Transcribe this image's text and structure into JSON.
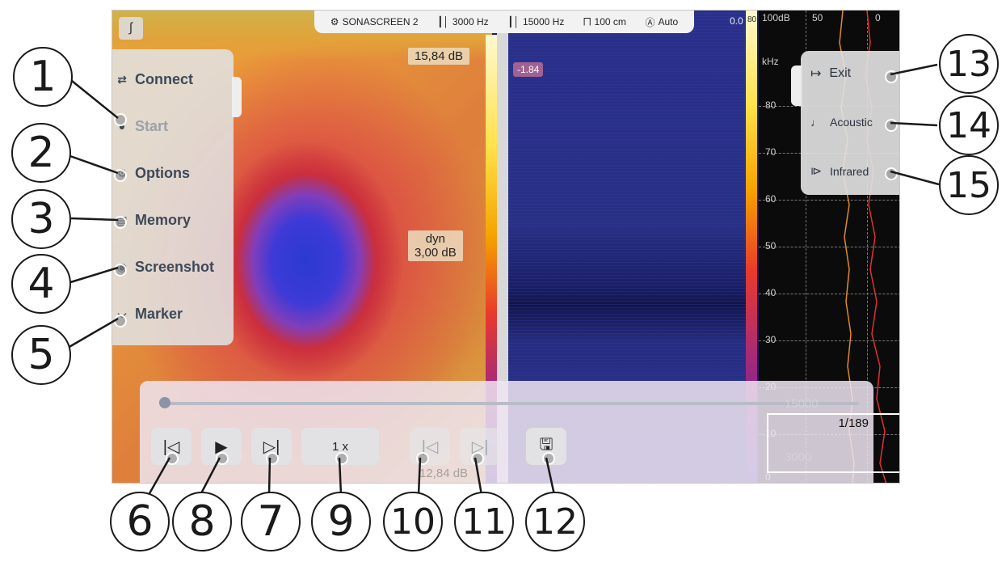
{
  "topbar": {
    "device": "SONASCREEN 2",
    "freq_low": "3000 Hz",
    "freq_high": "15000 Hz",
    "distance": "100 cm",
    "mode": "Auto"
  },
  "thermal": {
    "max_label": "15,84 dB",
    "dyn_label": "dyn",
    "dyn_value": "3,00 dB",
    "faded_label": "12,84 dB"
  },
  "spectro": {
    "neg_label": "-1.84",
    "top_value": "0.0",
    "scale_top": "80"
  },
  "spectrum": {
    "db_ticks": [
      "100dB",
      "50",
      "0"
    ],
    "khz_label": "kHz",
    "khz_ticks": [
      "80",
      "70",
      "60",
      "50",
      "40",
      "30",
      "20",
      "10",
      "0"
    ],
    "freq_high": "15000",
    "freq_low": "3000",
    "frame_counter": "1/189"
  },
  "left_menu": [
    {
      "label": "Connect",
      "icon": "link-icon",
      "disabled": false
    },
    {
      "label": "Start",
      "icon": "record-icon",
      "disabled": true
    },
    {
      "label": "Options",
      "icon": "gear-icon",
      "disabled": false
    },
    {
      "label": "Memory",
      "icon": "database-icon",
      "disabled": false
    },
    {
      "label": "Screenshot",
      "icon": "camera-icon",
      "disabled": false
    },
    {
      "label": "Marker",
      "icon": "marker-icon",
      "disabled": false
    }
  ],
  "right_menu": [
    {
      "label": "Exit",
      "icon": "exit-icon"
    },
    {
      "label": "Acoustic",
      "icon": "music-note-icon"
    },
    {
      "label": "Infrared",
      "icon": "infrared-icon"
    }
  ],
  "player": {
    "speed": "1 x",
    "progress": 0.0
  },
  "callouts": [
    "1",
    "2",
    "3",
    "4",
    "5",
    "6",
    "8",
    "7",
    "9",
    "10",
    "11",
    "12",
    "13",
    "14",
    "15"
  ]
}
